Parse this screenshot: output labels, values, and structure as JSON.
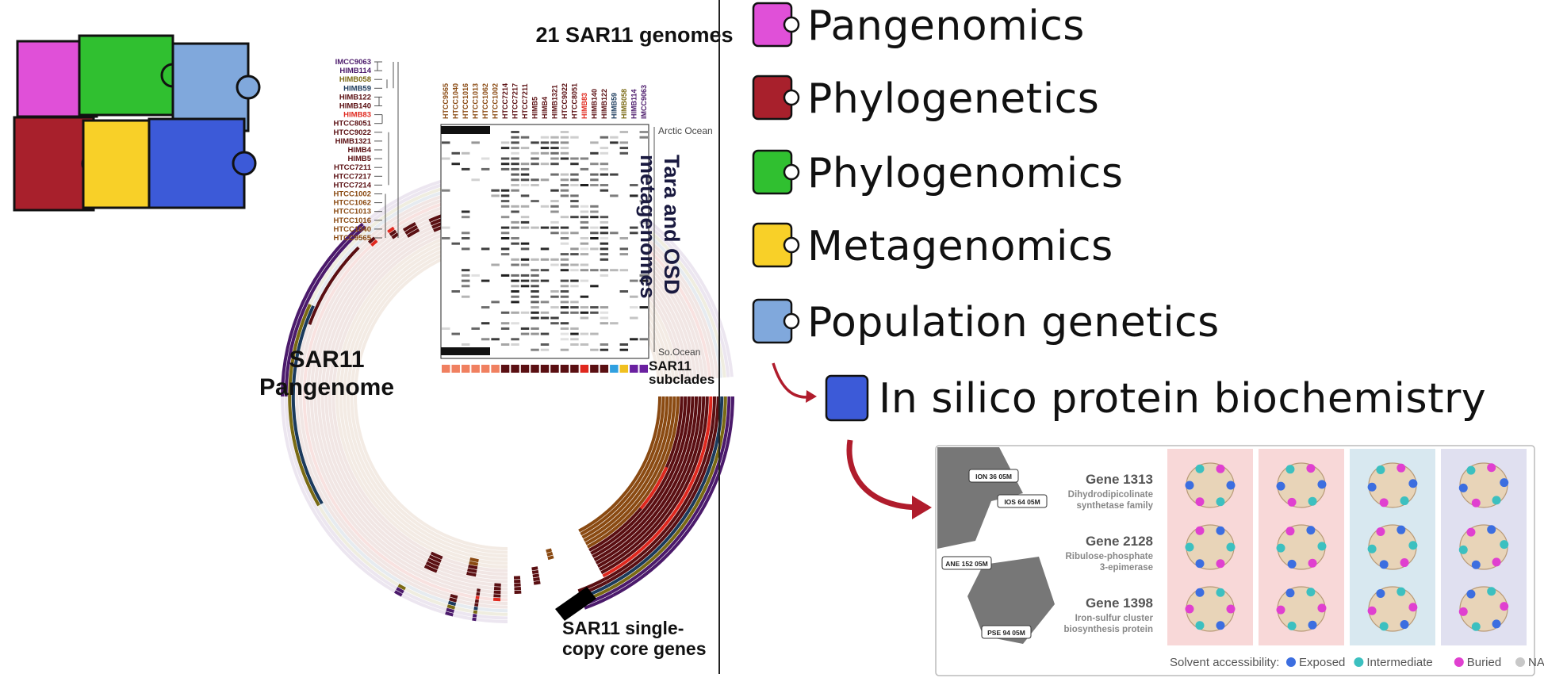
{
  "left_panel": {
    "title": "SAR11\nPangenome",
    "genomes_header": "21 SAR11 genomes",
    "metagenomes_label": "Tara and OSD metagenomes",
    "arctic_label": "Arctic Ocean",
    "southern_label": "So.Ocean",
    "subclades_label": "SAR11\nsubclades",
    "core_label": "SAR11 single-\ncopy core genes",
    "genomes": [
      "IMCC9063",
      "HIMB114",
      "HIMB058",
      "HIMB59",
      "HIMB122",
      "HIMB140",
      "HIMB83",
      "HTCC8051",
      "HTCC9022",
      "HIMB1321",
      "HIMB4",
      "HIMB5",
      "HTCC7211",
      "HTCC7217",
      "HTCC7214",
      "HTCC1002",
      "HTCC1062",
      "HTCC1013",
      "HTCC1016",
      "HTCC1040",
      "HTCC9565"
    ],
    "genome_colors": [
      "#4b1a6b",
      "#4b1a6b",
      "#7a6a14",
      "#1b3a5c",
      "#5a0f12",
      "#5a0f12",
      "#e0281e",
      "#5a0f12",
      "#5a0f12",
      "#5a0f12",
      "#5a0f12",
      "#5a0f12",
      "#5a0f12",
      "#5a0f12",
      "#5a0f12",
      "#8a4a12",
      "#8a4a12",
      "#8a4a12",
      "#8a4a12",
      "#8a4a12",
      "#8a4a12"
    ],
    "column_genomes": [
      "HTCC9565",
      "HTCC1040",
      "HTCC1016",
      "HTCC1013",
      "HTCC1062",
      "HTCC1002",
      "HTCC7214",
      "HTCC7217",
      "HTCC7211",
      "HIMB5",
      "HIMB4",
      "HIMB1321",
      "HTCC9022",
      "HTCC8051",
      "HIMB83",
      "HIMB140",
      "HIMB122",
      "HIMB59",
      "HIMB058",
      "HIMB114",
      "IMCC9063"
    ],
    "column_colors": [
      "#8a4a12",
      "#8a4a12",
      "#8a4a12",
      "#8a4a12",
      "#8a4a12",
      "#8a4a12",
      "#5a0f12",
      "#5a0f12",
      "#5a0f12",
      "#5a0f12",
      "#5a0f12",
      "#5a0f12",
      "#5a0f12",
      "#5a0f12",
      "#e0281e",
      "#5a0f12",
      "#5a0f12",
      "#1b3a5c",
      "#7a6a14",
      "#4b1a6b",
      "#4b1a6b"
    ]
  },
  "legend": {
    "items": [
      {
        "label": "Pangenomics",
        "color": "#e050d8",
        "icon": "puzzle-piece-magenta-icon"
      },
      {
        "label": "Phylogenetics",
        "color": "#a8202c",
        "icon": "puzzle-piece-crimson-icon"
      },
      {
        "label": "Phylogenomics",
        "color": "#30c030",
        "icon": "puzzle-piece-green-icon"
      },
      {
        "label": "Metagenomics",
        "color": "#f8d028",
        "icon": "puzzle-piece-yellow-icon"
      },
      {
        "label": "Population genetics",
        "color": "#80a8dc",
        "icon": "puzzle-piece-lightblue-icon"
      }
    ],
    "final": {
      "label": "In silico protein biochemistry",
      "color": "#3c5ad8",
      "icon": "puzzle-piece-blue-icon"
    }
  },
  "protein_panel": {
    "stations": [
      "ION 36 05M",
      "IOS 64 05M",
      "ANE 152 05M",
      "PSE 94 05M"
    ],
    "genes": [
      {
        "name": "Gene 1313",
        "desc": "Dihydrodipicolinate\nsynthetase family"
      },
      {
        "name": "Gene 2128",
        "desc": "Ribulose-phosphate\n3-epimerase"
      },
      {
        "name": "Gene 1398",
        "desc": "Iron-sulfur cluster\nbiosynthesis protein"
      }
    ],
    "column_tints": [
      "#f8d8d8",
      "#f8d8d8",
      "#d8e8f0",
      "#e0e0f0"
    ],
    "accessibility_title": "Solvent accessibility:",
    "accessibility": [
      {
        "label": "Exposed",
        "color": "#3c6ee0"
      },
      {
        "label": "Intermediate",
        "color": "#3cc0c0"
      },
      {
        "label": "Buried",
        "color": "#e040d0"
      },
      {
        "label": "NA",
        "color": "#c8c8c8"
      }
    ]
  }
}
